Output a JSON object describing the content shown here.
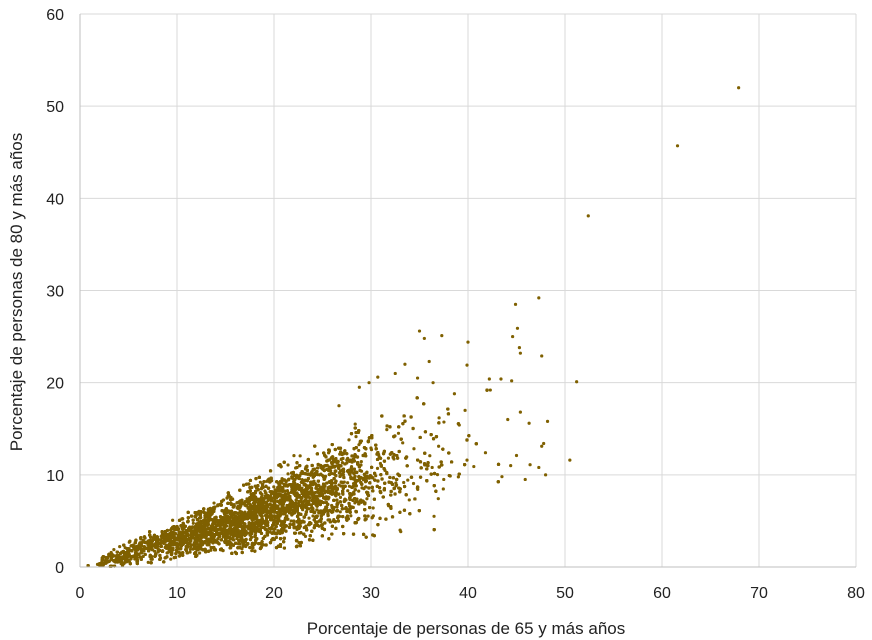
{
  "chart_data": {
    "type": "scatter",
    "title": "",
    "xlabel": "Porcentaje de personas de 65 y más años",
    "ylabel": "Porcentaje de personas de 80 y más años",
    "xlim": [
      0,
      80
    ],
    "ylim": [
      0,
      60
    ],
    "xticks": [
      0,
      10,
      20,
      30,
      40,
      50,
      60,
      70,
      80
    ],
    "yticks": [
      0,
      10,
      20,
      30,
      40,
      50,
      60
    ],
    "grid": true,
    "legend": "none",
    "colors": {
      "point": "#7f6000",
      "grid": "#d9d9d9",
      "axis": "#bfbfbf"
    },
    "series": [
      {
        "points": [
          [
            67.9,
            52.0
          ],
          [
            61.6,
            45.7
          ],
          [
            52.4,
            38.1
          ],
          [
            51.2,
            20.1
          ],
          [
            50.5,
            11.6
          ],
          [
            47.3,
            29.2
          ],
          [
            47.6,
            22.9
          ],
          [
            44.9,
            28.5
          ],
          [
            45.1,
            25.9
          ],
          [
            44.6,
            25.0
          ],
          [
            45.3,
            23.8
          ],
          [
            45.4,
            23.2
          ],
          [
            40.0,
            24.4
          ],
          [
            39.9,
            21.9
          ],
          [
            37.3,
            25.1
          ],
          [
            35.0,
            25.6
          ],
          [
            35.5,
            24.8
          ],
          [
            36.0,
            22.3
          ],
          [
            43.4,
            20.4
          ],
          [
            42.2,
            20.4
          ],
          [
            44.5,
            20.2
          ],
          [
            42.3,
            19.2
          ],
          [
            45.4,
            16.8
          ],
          [
            44.1,
            16.0
          ],
          [
            48.2,
            15.8
          ],
          [
            46.3,
            15.6
          ],
          [
            47.8,
            13.4
          ],
          [
            47.6,
            13.1
          ],
          [
            48.0,
            10.0
          ],
          [
            47.3,
            10.8
          ],
          [
            46.4,
            11.1
          ],
          [
            45.0,
            12.1
          ],
          [
            44.4,
            11.0
          ],
          [
            45.9,
            9.5
          ],
          [
            43.5,
            9.8
          ],
          [
            41.8,
            12.4
          ],
          [
            40.6,
            10.9
          ],
          [
            38.6,
            18.8
          ],
          [
            39.7,
            17.0
          ],
          [
            37.5,
            9.5
          ],
          [
            36.5,
            5.5
          ],
          [
            33.0,
            4.0
          ],
          [
            33.5,
            22.0
          ],
          [
            34.8,
            20.5
          ],
          [
            36.4,
            20.0
          ],
          [
            32.5,
            21.0
          ],
          [
            30.7,
            20.6
          ],
          [
            29.8,
            20.0
          ],
          [
            28.8,
            19.5
          ],
          [
            26.7,
            17.5
          ],
          [
            39.9,
            11.6
          ],
          [
            39.1,
            15.4
          ]
        ]
      }
    ],
    "dense_cloud": {
      "description_points": [
        [
          1,
          0.1
        ],
        [
          2,
          0.3
        ],
        [
          3,
          0.6
        ],
        [
          5,
          1.0
        ],
        [
          8,
          1.8
        ],
        [
          10,
          2.5
        ],
        [
          12,
          3.2
        ],
        [
          15,
          4.2
        ],
        [
          18,
          5.2
        ],
        [
          20,
          6.0
        ],
        [
          22,
          6.8
        ],
        [
          24,
          7.5
        ],
        [
          26,
          8.2
        ],
        [
          28,
          9.0
        ],
        [
          30,
          9.8
        ],
        [
          32,
          10.5
        ],
        [
          34,
          11.2
        ],
        [
          36,
          12.0
        ],
        [
          38,
          12.8
        ]
      ]
    }
  }
}
